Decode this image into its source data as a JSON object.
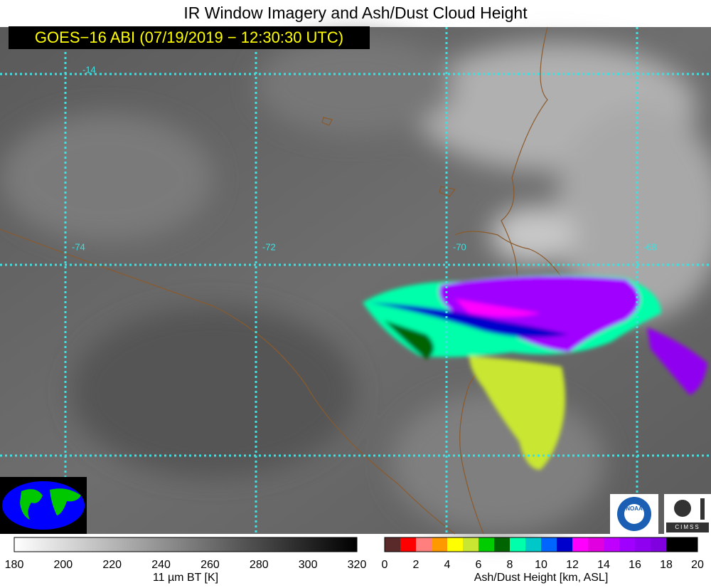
{
  "header": {
    "title": "IR Window Imagery and Ash/Dust Cloud Height",
    "timestamp": "GOES−16 ABI (07/19/2019 − 12:30:30 UTC)"
  },
  "map": {
    "latitude_labels": [
      "-14"
    ],
    "longitude_labels": [
      "-74",
      "-72",
      "-70",
      "-68"
    ],
    "grid_color": "#40e0e0"
  },
  "colorbars": [
    {
      "label": "11 µm BT [K]",
      "ticks": [
        180,
        200,
        220,
        240,
        260,
        280,
        300,
        320
      ],
      "colors": [
        "#ffffff",
        "#000000"
      ]
    },
    {
      "label": "Ash/Dust Height [km, ASL]",
      "ticks": [
        0,
        2,
        4,
        6,
        8,
        10,
        12,
        14,
        16,
        18,
        20
      ],
      "colors": [
        "#5a2a2a",
        "#ff0000",
        "#ff7f7f",
        "#ff9900",
        "#ffff00",
        "#c8e632",
        "#00cc00",
        "#006400",
        "#00ffaa",
        "#00c8c8",
        "#0064ff",
        "#0000cc",
        "#ff00ff",
        "#e000e0",
        "#c000ff",
        "#a000ff",
        "#9000f0",
        "#8000e0",
        "#000000",
        "#000000"
      ]
    }
  ],
  "logos": {
    "noaa": "NOAA",
    "cimss": "CIMSS"
  }
}
